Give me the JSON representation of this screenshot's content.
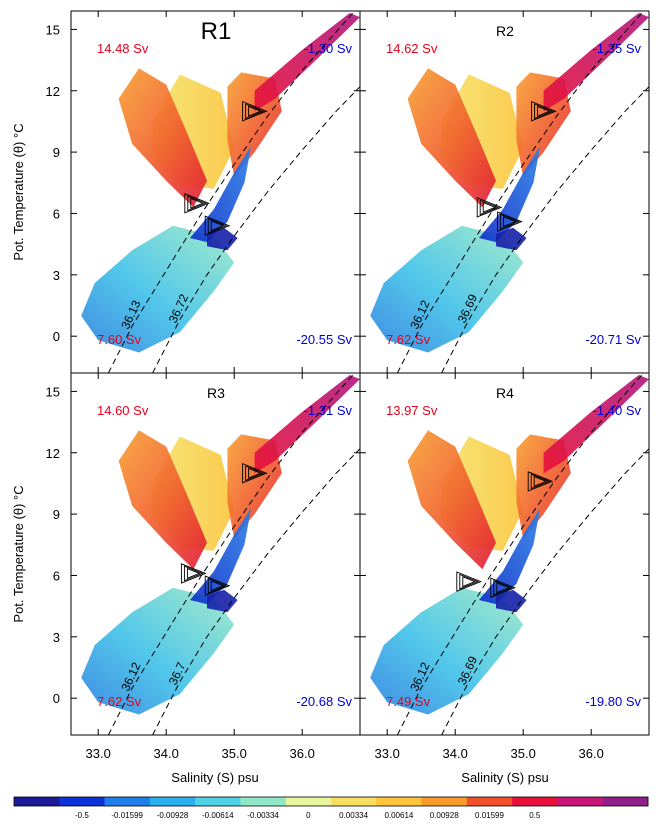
{
  "figure": {
    "xlabel": "Salinity (S) psu",
    "ylabel": "Pot. Temperature (θ) °C",
    "x_ticks": [
      "33.0",
      "34.0",
      "35.0",
      "36.0"
    ],
    "y_ticks": [
      "0",
      "3",
      "6",
      "9",
      "12",
      "15"
    ],
    "colorbar": {
      "labels": [
        "-0.5",
        "-0.01599",
        "-0.00928",
        "-0.00614",
        "-0.00334",
        "0",
        "0.00334",
        "0.00614",
        "0.00928",
        "0.01599",
        "0.5"
      ],
      "colors": [
        "#1a1a9a",
        "#0c2fd6",
        "#1f7fe8",
        "#2ab0ee",
        "#4fd2e6",
        "#8fe8c8",
        "#e9f59a",
        "#f7e060",
        "#fbc43a",
        "#f69a2a",
        "#f0502a",
        "#e8103a",
        "#c8157a",
        "#8e2088"
      ]
    },
    "warm_color": "#e8001c",
    "cold_color": "#0000d6"
  },
  "chart_data": [
    {
      "type": "scatter",
      "title": "R1",
      "xlim": [
        32.6,
        36.85
      ],
      "ylim": [
        -1.8,
        15.9
      ],
      "transport_labels": {
        "top_left": "14.48 Sv",
        "top_right": "-1.30 Sv",
        "bottom_left": "7.60 Sv",
        "bottom_right": "-20.55 Sv"
      },
      "isopycnals": [
        {
          "label": "36.13",
          "points": [
            [
              33.15,
              -1.8
            ],
            [
              33.5,
              0.5
            ],
            [
              34.0,
              3.2
            ],
            [
              34.5,
              5.9
            ],
            [
              35.0,
              8.4
            ],
            [
              35.5,
              10.8
            ],
            [
              36.0,
              13.0
            ],
            [
              36.85,
              16.2
            ]
          ]
        },
        {
          "label": "36.72",
          "points": [
            [
              33.8,
              -1.8
            ],
            [
              34.2,
              0.8
            ],
            [
              34.6,
              3.0
            ],
            [
              35.0,
              4.9
            ],
            [
              35.5,
              7.1
            ],
            [
              36.0,
              9.1
            ],
            [
              36.5,
              11.0
            ],
            [
              36.85,
              12.2
            ]
          ]
        }
      ],
      "triangles": [
        {
          "x": 35.3,
          "y": 11.0
        },
        {
          "x": 34.45,
          "y": 6.5
        },
        {
          "x": 34.75,
          "y": 5.4
        }
      ]
    },
    {
      "type": "scatter",
      "title": "R2",
      "xlim": [
        32.6,
        36.85
      ],
      "ylim": [
        -1.8,
        15.9
      ],
      "transport_labels": {
        "top_left": "14.62 Sv",
        "top_right": "-1.35 Sv",
        "bottom_left": "7.62 Sv",
        "bottom_right": "-20.71 Sv"
      },
      "isopycnals": [
        {
          "label": "36.12",
          "points": [
            [
              33.15,
              -1.8
            ],
            [
              33.5,
              0.5
            ],
            [
              34.0,
              3.2
            ],
            [
              34.5,
              5.9
            ],
            [
              35.0,
              8.4
            ],
            [
              35.5,
              10.8
            ],
            [
              36.0,
              13.0
            ],
            [
              36.85,
              16.2
            ]
          ]
        },
        {
          "label": "36.69",
          "points": [
            [
              33.8,
              -1.8
            ],
            [
              34.2,
              0.8
            ],
            [
              34.6,
              3.0
            ],
            [
              35.0,
              4.9
            ],
            [
              35.5,
              7.1
            ],
            [
              36.0,
              9.1
            ],
            [
              36.5,
              11.0
            ],
            [
              36.85,
              12.2
            ]
          ]
        }
      ],
      "triangles": [
        {
          "x": 35.3,
          "y": 11.0
        },
        {
          "x": 34.5,
          "y": 6.3
        },
        {
          "x": 34.8,
          "y": 5.6
        }
      ]
    },
    {
      "type": "scatter",
      "title": "R3",
      "xlim": [
        32.6,
        36.85
      ],
      "ylim": [
        -1.8,
        15.9
      ],
      "transport_labels": {
        "top_left": "14.60 Sv",
        "top_right": "-1.31 Sv",
        "bottom_left": "7.62 Sv",
        "bottom_right": "-20.68 Sv"
      },
      "isopycnals": [
        {
          "label": "36.12",
          "points": [
            [
              33.15,
              -1.8
            ],
            [
              33.5,
              0.5
            ],
            [
              34.0,
              3.2
            ],
            [
              34.5,
              5.9
            ],
            [
              35.0,
              8.4
            ],
            [
              35.5,
              10.8
            ],
            [
              36.0,
              13.0
            ],
            [
              36.85,
              16.2
            ]
          ]
        },
        {
          "label": "36.7",
          "points": [
            [
              33.8,
              -1.8
            ],
            [
              34.2,
              0.8
            ],
            [
              34.6,
              3.0
            ],
            [
              35.0,
              4.9
            ],
            [
              35.5,
              7.1
            ],
            [
              36.0,
              9.1
            ],
            [
              36.5,
              11.0
            ],
            [
              36.85,
              12.2
            ]
          ]
        }
      ],
      "triangles": [
        {
          "x": 35.3,
          "y": 11.0
        },
        {
          "x": 34.4,
          "y": 6.1
        },
        {
          "x": 34.75,
          "y": 5.5
        }
      ]
    },
    {
      "type": "scatter",
      "title": "R4",
      "xlim": [
        32.6,
        36.85
      ],
      "ylim": [
        -1.8,
        15.9
      ],
      "transport_labels": {
        "top_left": "13.97 Sv",
        "top_right": "-1.40 Sv",
        "bottom_left": "7.49 Sv",
        "bottom_right": "-19.80 Sv"
      },
      "isopycnals": [
        {
          "label": "36.12",
          "points": [
            [
              33.15,
              -1.8
            ],
            [
              33.5,
              0.5
            ],
            [
              34.0,
              3.2
            ],
            [
              34.5,
              5.9
            ],
            [
              35.0,
              8.4
            ],
            [
              35.5,
              10.8
            ],
            [
              36.0,
              13.0
            ],
            [
              36.85,
              16.2
            ]
          ]
        },
        {
          "label": "36.69",
          "points": [
            [
              33.8,
              -1.8
            ],
            [
              34.2,
              0.8
            ],
            [
              34.6,
              3.0
            ],
            [
              35.0,
              4.9
            ],
            [
              35.5,
              7.1
            ],
            [
              36.0,
              9.1
            ],
            [
              36.5,
              11.0
            ],
            [
              36.85,
              12.2
            ]
          ]
        }
      ],
      "triangles": [
        {
          "x": 35.25,
          "y": 10.6
        },
        {
          "x": 34.2,
          "y": 5.7
        },
        {
          "x": 34.7,
          "y": 5.4
        }
      ]
    }
  ]
}
